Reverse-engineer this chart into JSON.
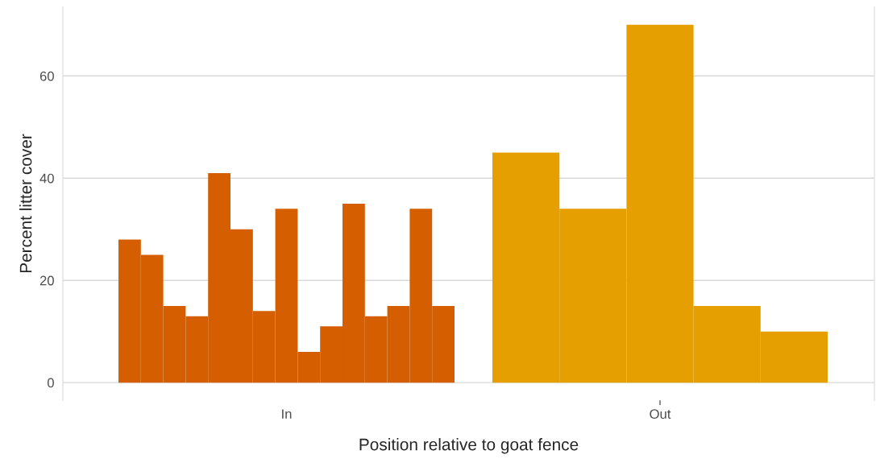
{
  "chart_data": [
    {
      "type": "bar",
      "xlabel": "Position relative to goat fence",
      "ylabel": "Percent litter cover",
      "categories": [
        null,
        null,
        null,
        null,
        null,
        null,
        null,
        "In",
        null,
        null,
        null,
        null,
        null,
        null,
        null
      ],
      "series": [
        {
          "color": "#d55e00",
          "values": [
            28,
            25,
            15,
            13,
            41,
            30,
            14,
            34,
            6,
            11,
            35,
            13,
            15,
            34,
            15
          ]
        }
      ],
      "ylim": [
        -3.5,
        73.5
      ],
      "yticks": [
        0,
        20,
        40,
        60
      ],
      "grid": "y"
    },
    {
      "type": "bar",
      "categories": [
        null,
        null,
        "Out",
        null,
        null
      ],
      "series": [
        {
          "color": "#e69f00",
          "values": [
            45,
            34,
            70,
            15,
            10
          ]
        }
      ],
      "ylim": [
        -3.5,
        73.5
      ],
      "yticks": [
        0,
        20,
        40,
        60
      ],
      "grid": "y",
      "tick_labels": "x"
    }
  ]
}
